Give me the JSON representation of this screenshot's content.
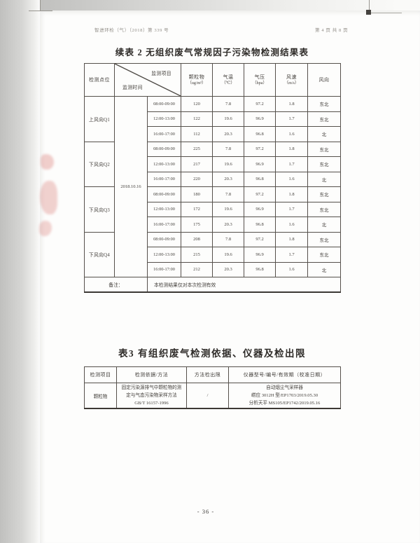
{
  "page": {
    "header_left": "智进环检（气）（2018）第 339 号",
    "header_right": "第 4 页 共 8 页",
    "page_number": "- 36 -"
  },
  "table2": {
    "title": "续表 2 无组织废气常规因子污染物检测结果表",
    "header": {
      "point_col": "检测点位",
      "diag_top": "监测项目",
      "diag_bottom": "监测时间",
      "cols": [
        {
          "name": "颗粒物",
          "unit": "（ug/m³）"
        },
        {
          "name": "气温",
          "unit": "（℃）"
        },
        {
          "name": "气压",
          "unit": "（hpa）"
        },
        {
          "name": "风速",
          "unit": "（m/s）"
        },
        {
          "name": "风向",
          "unit": ""
        }
      ]
    },
    "date": "2018.10.16",
    "groups": [
      {
        "point": "上风向Q1",
        "rows": [
          [
            "08:00-09:00",
            "120",
            "7.8",
            "97.2",
            "1.8",
            "东北"
          ],
          [
            "12:00-13:00",
            "122",
            "19.6",
            "96.9",
            "1.7",
            "东北"
          ],
          [
            "16:00-17:00",
            "112",
            "20.3",
            "96.8",
            "1.6",
            "北"
          ]
        ]
      },
      {
        "point": "下风向Q2",
        "rows": [
          [
            "08:00-09:00",
            "225",
            "7.8",
            "97.2",
            "1.8",
            "东北"
          ],
          [
            "12:00-13:00",
            "217",
            "19.6",
            "96.9",
            "1.7",
            "东北"
          ],
          [
            "16:00-17:00",
            "220",
            "20.3",
            "96.8",
            "1.6",
            "北"
          ]
        ]
      },
      {
        "point": "下风向Q3",
        "rows": [
          [
            "08:00-09:00",
            "180",
            "7.8",
            "97.2",
            "1.8",
            "东北"
          ],
          [
            "12:00-13:00",
            "172",
            "19.6",
            "96.9",
            "1.7",
            "东北"
          ],
          [
            "16:00-17:00",
            "175",
            "20.3",
            "96.8",
            "1.6",
            "北"
          ]
        ]
      },
      {
        "point": "下风向Q4",
        "rows": [
          [
            "08:00-09:00",
            "208",
            "7.8",
            "97.2",
            "1.8",
            "东北"
          ],
          [
            "12:00-13:00",
            "215",
            "19.6",
            "96.9",
            "1.7",
            "东北"
          ],
          [
            "16:00-17:00",
            "212",
            "20.3",
            "96.8",
            "1.6",
            "北"
          ]
        ]
      }
    ],
    "note_label": "备注：",
    "note_text": "本检测结果仅对本次检测有效"
  },
  "table3": {
    "title": "表3 有组织废气检测依据、仪器及检出限",
    "headers": [
      "检测项目",
      "检测依据/方法",
      "方法检出限",
      "仪器型号/编号/有效期（校准日期）"
    ],
    "rows": [
      {
        "item": "颗粒物",
        "method_lines": [
          "固定污染源排气中颗粒物的测",
          "定与气态污染物采样方法",
          "GB/T 16157-1996"
        ],
        "detection_limit": "/",
        "instrument_lines": [
          "自动烟尘气采样器",
          "崂应 3012H 型/EP1703/2019.05.30",
          "分析天平 MS105/EP1742/2019.05.16"
        ]
      }
    ]
  },
  "colors": {
    "page_background": "#fdfdfc",
    "scanner_gray": "#c0c0be",
    "table_border": "#3c3834",
    "text": "#44403c",
    "stamp_red": "#c93e37"
  }
}
